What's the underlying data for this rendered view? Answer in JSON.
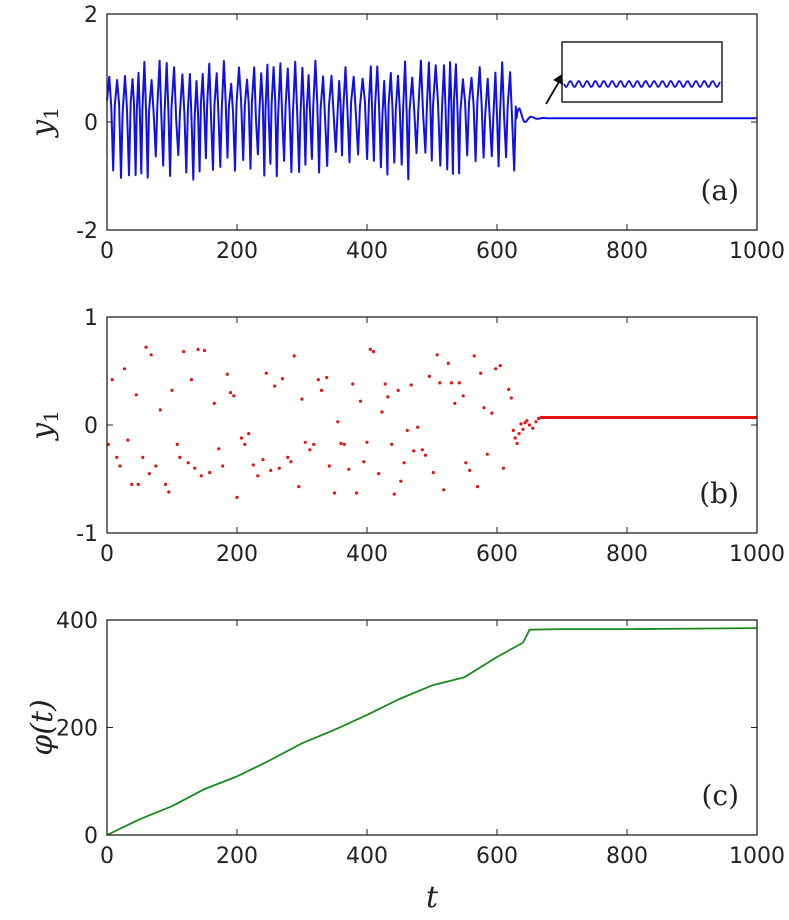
{
  "chart_data": [
    {
      "id": "a",
      "type": "line",
      "panel_label": "(a)",
      "xlabel": "",
      "ylabel": "y",
      "ylabel_sub": "1",
      "xlim": [
        0,
        1000
      ],
      "ylim": [
        -2,
        2
      ],
      "xticks": [
        0,
        200,
        400,
        600,
        800,
        1000
      ],
      "yticks": [
        -2,
        0,
        2
      ],
      "color": "#1010e8",
      "series": [
        {
          "name": "y1",
          "description": "chaotic oscillation between about -1.1 and 1.1 until t≈630, damped transient, then settles at ≈0.07 with small oscillation"
        }
      ],
      "chaos_end_t": 630,
      "settle_value": 0.07,
      "inset": {
        "shows": "zoom of small-amplitude oscillation after t≈650"
      }
    },
    {
      "id": "b",
      "type": "scatter",
      "panel_label": "(b)",
      "xlabel": "",
      "ylabel": "y",
      "ylabel_sub": "1",
      "xlim": [
        0,
        1000
      ],
      "ylim": [
        -1,
        1
      ],
      "xticks": [
        0,
        200,
        400,
        600,
        800,
        1000
      ],
      "yticks": [
        -1,
        0,
        1
      ],
      "color": "#e81010",
      "settle_value": 0.07,
      "points": [
        [
          2,
          -0.18
        ],
        [
          8,
          0.42
        ],
        [
          15,
          -0.3
        ],
        [
          20,
          -0.38
        ],
        [
          27,
          0.52
        ],
        [
          32,
          -0.14
        ],
        [
          38,
          -0.55
        ],
        [
          45,
          0.28
        ],
        [
          48,
          -0.55
        ],
        [
          55,
          -0.3
        ],
        [
          60,
          0.72
        ],
        [
          65,
          -0.45
        ],
        [
          68,
          0.65
        ],
        [
          75,
          -0.38
        ],
        [
          82,
          0.14
        ],
        [
          90,
          -0.55
        ],
        [
          95,
          -0.62
        ],
        [
          100,
          0.32
        ],
        [
          108,
          -0.18
        ],
        [
          112,
          -0.3
        ],
        [
          118,
          0.68
        ],
        [
          125,
          -0.35
        ],
        [
          130,
          0.42
        ],
        [
          135,
          -0.4
        ],
        [
          140,
          0.7
        ],
        [
          145,
          -0.47
        ],
        [
          150,
          0.69
        ],
        [
          158,
          -0.44
        ],
        [
          165,
          0.2
        ],
        [
          172,
          -0.22
        ],
        [
          178,
          -0.38
        ],
        [
          185,
          0.47
        ],
        [
          190,
          0.3
        ],
        [
          195,
          0.27
        ],
        [
          200,
          -0.67
        ],
        [
          207,
          -0.12
        ],
        [
          212,
          -0.18
        ],
        [
          218,
          -0.08
        ],
        [
          225,
          -0.37
        ],
        [
          232,
          -0.47
        ],
        [
          240,
          -0.32
        ],
        [
          245,
          0.48
        ],
        [
          252,
          -0.42
        ],
        [
          258,
          0.36
        ],
        [
          265,
          -0.4
        ],
        [
          270,
          0.43
        ],
        [
          278,
          -0.3
        ],
        [
          283,
          -0.34
        ],
        [
          288,
          0.64
        ],
        [
          295,
          -0.57
        ],
        [
          300,
          0.24
        ],
        [
          305,
          -0.16
        ],
        [
          312,
          -0.23
        ],
        [
          318,
          -0.18
        ],
        [
          325,
          0.42
        ],
        [
          330,
          0.32
        ],
        [
          338,
          0.44
        ],
        [
          342,
          -0.38
        ],
        [
          350,
          -0.63
        ],
        [
          355,
          0.03
        ],
        [
          360,
          -0.17
        ],
        [
          365,
          -0.18
        ],
        [
          372,
          -0.41
        ],
        [
          378,
          0.38
        ],
        [
          384,
          -0.63
        ],
        [
          390,
          0.22
        ],
        [
          395,
          -0.34
        ],
        [
          400,
          -0.16
        ],
        [
          405,
          0.7
        ],
        [
          410,
          0.68
        ],
        [
          418,
          -0.45
        ],
        [
          423,
          0.12
        ],
        [
          428,
          0.38
        ],
        [
          432,
          0.26
        ],
        [
          438,
          -0.18
        ],
        [
          442,
          -0.64
        ],
        [
          448,
          0.32
        ],
        [
          452,
          -0.52
        ],
        [
          457,
          -0.35
        ],
        [
          462,
          -0.05
        ],
        [
          468,
          0.37
        ],
        [
          472,
          -0.24
        ],
        [
          478,
          -0.02
        ],
        [
          485,
          -0.23
        ],
        [
          490,
          -0.28
        ],
        [
          496,
          0.45
        ],
        [
          502,
          -0.44
        ],
        [
          508,
          0.65
        ],
        [
          512,
          0.39
        ],
        [
          518,
          -0.6
        ],
        [
          525,
          0.57
        ],
        [
          530,
          0.39
        ],
        [
          535,
          0.2
        ],
        [
          542,
          0.39
        ],
        [
          548,
          0.27
        ],
        [
          552,
          -0.35
        ],
        [
          558,
          -0.42
        ],
        [
          565,
          0.64
        ],
        [
          570,
          -0.57
        ],
        [
          575,
          0.48
        ],
        [
          580,
          0.16
        ],
        [
          585,
          -0.27
        ],
        [
          592,
          0.11
        ],
        [
          598,
          0.52
        ],
        [
          605,
          0.55
        ],
        [
          610,
          -0.4
        ],
        [
          618,
          0.33
        ],
        [
          622,
          0.25
        ],
        [
          625,
          -0.05
        ],
        [
          628,
          -0.12
        ],
        [
          631,
          -0.17
        ],
        [
          634,
          -0.08
        ],
        [
          637,
          0.01
        ],
        [
          640,
          -0.04
        ],
        [
          643,
          0.02
        ],
        [
          646,
          0.04
        ],
        [
          650,
          0.0
        ],
        [
          655,
          -0.03
        ],
        [
          660,
          0.03
        ],
        [
          664,
          0.06
        ],
        [
          668,
          0.07
        ]
      ]
    },
    {
      "id": "c",
      "type": "line",
      "panel_label": "(c)",
      "xlabel": "t",
      "ylabel": "φ(t)",
      "xlim": [
        0,
        1000
      ],
      "ylim": [
        0,
        400
      ],
      "xticks": [
        0,
        200,
        400,
        600,
        800,
        1000
      ],
      "yticks": [
        0,
        200,
        400
      ],
      "color": "#1a8a1a",
      "series": [
        {
          "name": "phi",
          "x": [
            0,
            50,
            100,
            150,
            200,
            250,
            300,
            350,
            400,
            450,
            500,
            550,
            600,
            640,
            645,
            650,
            700,
            800,
            900,
            1000
          ],
          "y": [
            0,
            28,
            55,
            85,
            108,
            140,
            170,
            195,
            225,
            252,
            278,
            295,
            330,
            358,
            370,
            382,
            383,
            383,
            384,
            385
          ]
        }
      ]
    }
  ]
}
